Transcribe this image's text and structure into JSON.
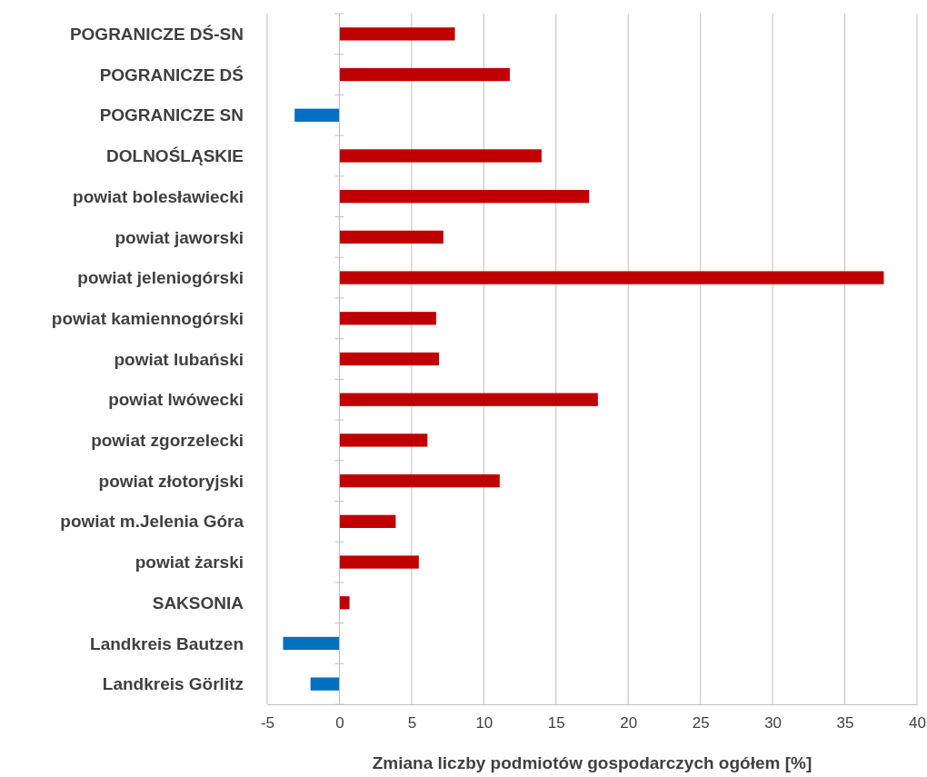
{
  "chart_data": {
    "type": "bar",
    "orientation": "horizontal",
    "xlabel": "Zmiana liczby podmiotów gospodarczych ogółem [%]",
    "categories": [
      "POGRANICZE DŚ-SN",
      "POGRANICZE DŚ",
      "POGRANICZE SN",
      "DOLNOŚLĄSKIE",
      "powiat bolesławiecki",
      "powiat jaworski",
      "powiat jeleniogórski",
      "powiat kamiennogórski",
      "powiat lubański",
      "powiat lwówecki",
      "powiat zgorzelecki",
      "powiat złotoryjski",
      "powiat m.Jelenia Góra",
      "powiat żarski",
      "SAKSONIA",
      "Landkreis Bautzen",
      "Landkreis Görlitz"
    ],
    "values": [
      8.0,
      11.8,
      -3.1,
      14.0,
      17.3,
      7.2,
      37.7,
      6.7,
      6.9,
      17.9,
      6.1,
      11.1,
      3.9,
      5.5,
      0.7,
      -3.9,
      -2.0
    ],
    "colors": [
      "#c00000",
      "#c00000",
      "#0070c0",
      "#c00000",
      "#c00000",
      "#c00000",
      "#c00000",
      "#c00000",
      "#c00000",
      "#c00000",
      "#c00000",
      "#c00000",
      "#c00000",
      "#c00000",
      "#c00000",
      "#0070c0",
      "#0070c0"
    ],
    "xlim": [
      -5,
      40
    ],
    "xticks": [
      -5,
      0,
      5,
      10,
      15,
      20,
      25,
      30,
      35,
      40
    ],
    "grid": "x"
  }
}
